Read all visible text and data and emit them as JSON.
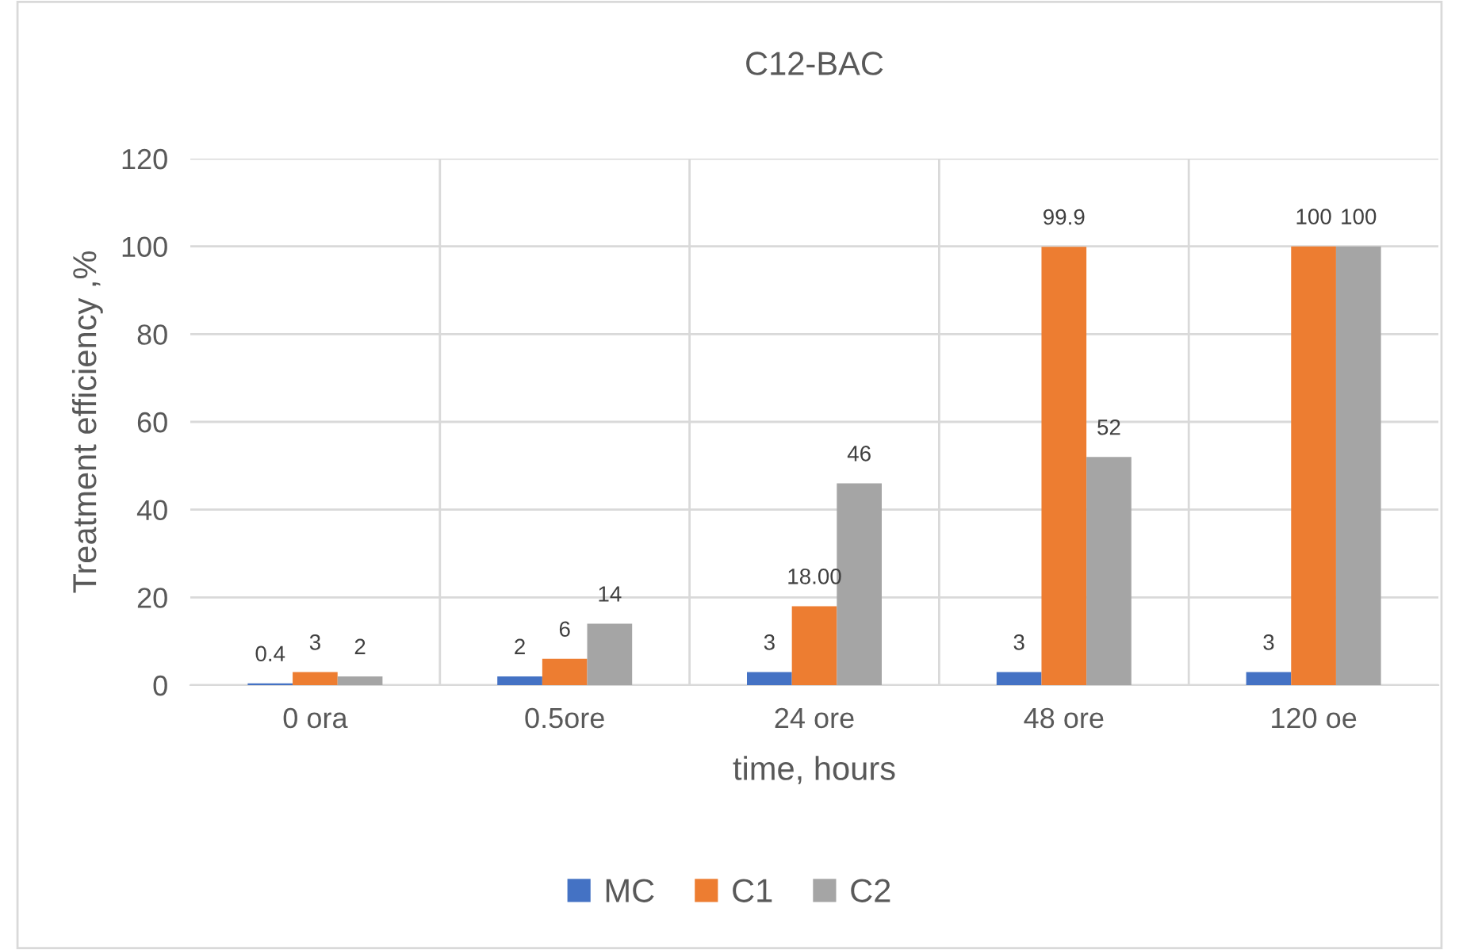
{
  "chart_data": {
    "type": "bar",
    "title": "C12-BAC",
    "xlabel": "time, hours",
    "ylabel": "Treatment efficiency ,%",
    "categories": [
      "0 ora",
      "0.5ore",
      "24 ore",
      "48 ore",
      "120 oe"
    ],
    "series": [
      {
        "name": "MC",
        "color": "#4472c4",
        "values": [
          0.4,
          2,
          3,
          3,
          3
        ],
        "value_labels": [
          "0.4",
          "2",
          "3",
          "3",
          "3"
        ]
      },
      {
        "name": "C1",
        "color": "#ed7d31",
        "values": [
          3,
          6,
          18,
          99.9,
          100
        ],
        "value_labels": [
          "3",
          "6",
          "18.00",
          "99.9",
          "100"
        ]
      },
      {
        "name": "C2",
        "color": "#a5a5a5",
        "values": [
          2,
          14,
          46,
          52,
          100
        ],
        "value_labels": [
          "2",
          "14",
          "46",
          "52",
          "100"
        ]
      }
    ],
    "ylim": [
      0,
      120
    ],
    "yticks": [
      0,
      20,
      40,
      60,
      80,
      100,
      120
    ],
    "grid": true,
    "legend": "bottom"
  }
}
